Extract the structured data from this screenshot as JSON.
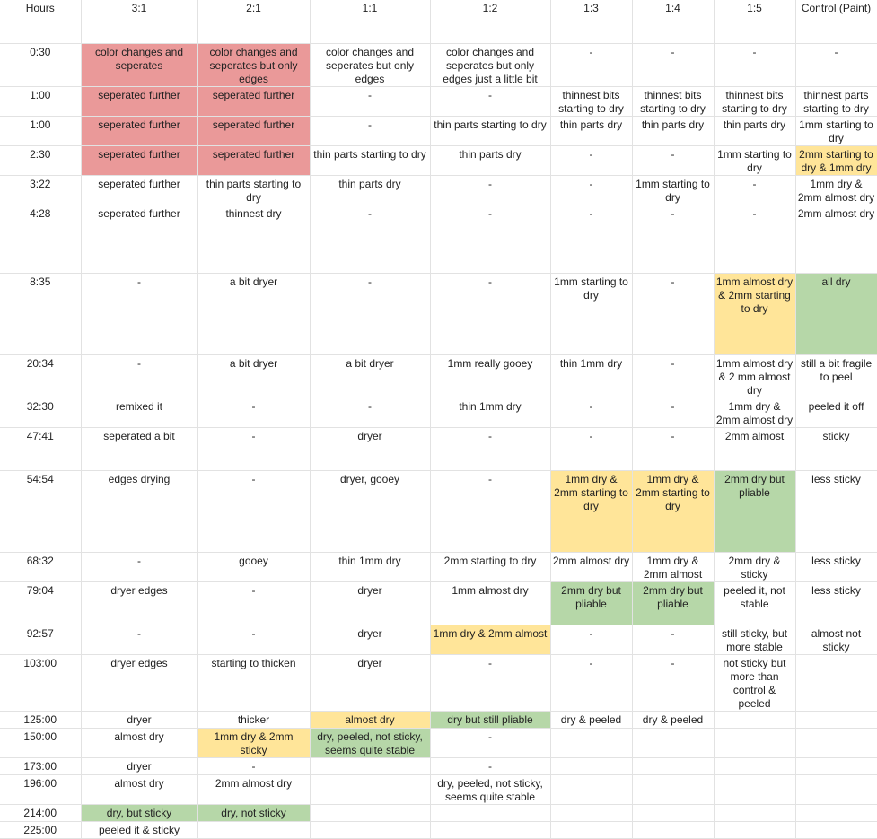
{
  "colors": {
    "red": "#ea9999",
    "yellow": "#ffe599",
    "green": "#b6d7a8"
  },
  "header": [
    "Hours",
    "3:1",
    "2:1",
    "1:1",
    "1:2",
    "1:3",
    "1:4",
    "1:5",
    "Control (Paint)"
  ],
  "rows": [
    {
      "hours": "0:30",
      "cells": [
        [
          "color changes and seperates",
          "red"
        ],
        [
          "color changes and seperates but only edges",
          "red"
        ],
        [
          "color changes and seperates but only edges",
          ""
        ],
        [
          "color changes and seperates but only edges just a little bit",
          ""
        ],
        [
          "-",
          ""
        ],
        [
          "-",
          ""
        ],
        [
          "-",
          ""
        ],
        [
          "-",
          ""
        ]
      ]
    },
    {
      "hours": "1:00",
      "cells": [
        [
          "seperated further",
          "red"
        ],
        [
          "seperated further",
          "red"
        ],
        [
          "-",
          ""
        ],
        [
          "-",
          ""
        ],
        [
          "thinnest bits starting to dry",
          ""
        ],
        [
          "thinnest bits starting to dry",
          ""
        ],
        [
          "thinnest bits starting to dry",
          ""
        ],
        [
          "thinnest parts starting to dry",
          ""
        ]
      ]
    },
    {
      "hours": "1:00",
      "cells": [
        [
          "seperated further",
          "red"
        ],
        [
          "seperated further",
          "red"
        ],
        [
          "-",
          ""
        ],
        [
          "thin parts starting to dry",
          ""
        ],
        [
          "thin parts dry",
          ""
        ],
        [
          "thin parts dry",
          ""
        ],
        [
          "thin parts dry",
          ""
        ],
        [
          "1mm starting to dry",
          ""
        ]
      ]
    },
    {
      "hours": "2:30",
      "cells": [
        [
          "seperated further",
          "red"
        ],
        [
          "seperated further",
          "red"
        ],
        [
          "thin parts starting to dry",
          ""
        ],
        [
          "thin parts dry",
          ""
        ],
        [
          "-",
          ""
        ],
        [
          "-",
          ""
        ],
        [
          "1mm starting to dry",
          ""
        ],
        [
          "2mm starting to dry & 1mm dry",
          "yellow"
        ]
      ]
    },
    {
      "hours": "3:22",
      "cells": [
        [
          "seperated further",
          ""
        ],
        [
          "thin parts starting to dry",
          ""
        ],
        [
          "thin parts dry",
          ""
        ],
        [
          "-",
          ""
        ],
        [
          "-",
          ""
        ],
        [
          "1mm starting to dry",
          ""
        ],
        [
          "-",
          ""
        ],
        [
          "1mm dry & 2mm almost dry",
          ""
        ]
      ]
    },
    {
      "hours": "4:28",
      "cells": [
        [
          "seperated further",
          ""
        ],
        [
          "thinnest dry",
          ""
        ],
        [
          "-",
          ""
        ],
        [
          "-",
          ""
        ],
        [
          "-",
          ""
        ],
        [
          "-",
          ""
        ],
        [
          "-",
          ""
        ],
        [
          "2mm almost dry",
          ""
        ]
      ]
    },
    {
      "hours": "8:35",
      "cells": [
        [
          "-",
          ""
        ],
        [
          "a bit dryer",
          ""
        ],
        [
          "-",
          ""
        ],
        [
          "-",
          ""
        ],
        [
          "1mm starting to dry",
          ""
        ],
        [
          "-",
          ""
        ],
        [
          "1mm almost dry & 2mm starting to dry",
          "yellow"
        ],
        [
          "all dry",
          "green"
        ]
      ]
    },
    {
      "hours": "20:34",
      "cells": [
        [
          "-",
          ""
        ],
        [
          "a bit dryer",
          ""
        ],
        [
          "a bit dryer",
          ""
        ],
        [
          "1mm really gooey",
          ""
        ],
        [
          "thin 1mm dry",
          ""
        ],
        [
          "-",
          ""
        ],
        [
          "1mm almost dry & 2 mm almost dry",
          ""
        ],
        [
          "still a bit fragile to peel",
          ""
        ]
      ]
    },
    {
      "hours": "32:30",
      "cells": [
        [
          "remixed it",
          ""
        ],
        [
          "-",
          ""
        ],
        [
          "-",
          ""
        ],
        [
          "thin 1mm dry",
          ""
        ],
        [
          "-",
          ""
        ],
        [
          "-",
          ""
        ],
        [
          "1mm dry & 2mm almost dry",
          ""
        ],
        [
          "peeled it off",
          ""
        ]
      ]
    },
    {
      "hours": "47:41",
      "cells": [
        [
          "seperated a bit",
          ""
        ],
        [
          "-",
          ""
        ],
        [
          "dryer",
          ""
        ],
        [
          "-",
          ""
        ],
        [
          "-",
          ""
        ],
        [
          "-",
          ""
        ],
        [
          "2mm almost",
          ""
        ],
        [
          "sticky",
          ""
        ]
      ]
    },
    {
      "hours": "54:54",
      "cells": [
        [
          "edges drying",
          ""
        ],
        [
          "-",
          ""
        ],
        [
          "dryer, gooey",
          ""
        ],
        [
          "-",
          ""
        ],
        [
          "1mm dry & 2mm starting to dry",
          "yellow"
        ],
        [
          "1mm dry & 2mm starting to dry",
          "yellow"
        ],
        [
          "2mm dry but pliable",
          "green"
        ],
        [
          "less sticky",
          ""
        ]
      ]
    },
    {
      "hours": "68:32",
      "cells": [
        [
          "-",
          ""
        ],
        [
          "gooey",
          ""
        ],
        [
          "thin 1mm dry",
          ""
        ],
        [
          "2mm starting to dry",
          ""
        ],
        [
          "2mm almost dry",
          ""
        ],
        [
          "1mm dry & 2mm almost",
          ""
        ],
        [
          "2mm dry & sticky",
          ""
        ],
        [
          "less sticky",
          ""
        ]
      ]
    },
    {
      "hours": "79:04",
      "cells": [
        [
          "dryer edges",
          ""
        ],
        [
          "-",
          ""
        ],
        [
          "dryer",
          ""
        ],
        [
          "1mm almost dry",
          ""
        ],
        [
          "2mm dry but pliable",
          "green"
        ],
        [
          "2mm dry but pliable",
          "green"
        ],
        [
          "peeled it, not stable",
          ""
        ],
        [
          "less sticky",
          ""
        ]
      ]
    },
    {
      "hours": "92:57",
      "cells": [
        [
          "-",
          ""
        ],
        [
          "-",
          ""
        ],
        [
          "dryer",
          ""
        ],
        [
          "1mm dry & 2mm almost",
          "yellow"
        ],
        [
          "-",
          ""
        ],
        [
          "-",
          ""
        ],
        [
          "still sticky, but more stable",
          ""
        ],
        [
          "almost not sticky",
          ""
        ]
      ]
    },
    {
      "hours": "103:00",
      "cells": [
        [
          "dryer edges",
          ""
        ],
        [
          "starting to thicken",
          ""
        ],
        [
          "dryer",
          ""
        ],
        [
          "-",
          ""
        ],
        [
          "-",
          ""
        ],
        [
          "-",
          ""
        ],
        [
          "not sticky but more than control & peeled",
          ""
        ],
        [
          "",
          ""
        ]
      ]
    },
    {
      "hours": "125:00",
      "cells": [
        [
          "dryer",
          ""
        ],
        [
          "thicker",
          ""
        ],
        [
          "almost dry",
          "yellow"
        ],
        [
          "dry but still pliable",
          "green"
        ],
        [
          "dry & peeled",
          ""
        ],
        [
          "dry & peeled",
          ""
        ],
        [
          "",
          ""
        ],
        [
          "",
          ""
        ]
      ]
    },
    {
      "hours": "150:00",
      "cells": [
        [
          "almost dry",
          ""
        ],
        [
          "1mm dry & 2mm sticky",
          "yellow"
        ],
        [
          "dry, peeled, not sticky, seems quite stable",
          "green"
        ],
        [
          "-",
          ""
        ],
        [
          "",
          ""
        ],
        [
          "",
          ""
        ],
        [
          "",
          ""
        ],
        [
          "",
          ""
        ]
      ]
    },
    {
      "hours": "173:00",
      "cells": [
        [
          "dryer",
          ""
        ],
        [
          "-",
          ""
        ],
        [
          "",
          ""
        ],
        [
          "-",
          ""
        ],
        [
          "",
          ""
        ],
        [
          "",
          ""
        ],
        [
          "",
          ""
        ],
        [
          "",
          ""
        ]
      ]
    },
    {
      "hours": "196:00",
      "cells": [
        [
          "almost dry",
          ""
        ],
        [
          "2mm almost dry",
          ""
        ],
        [
          "",
          ""
        ],
        [
          "dry, peeled, not sticky, seems quite stable",
          ""
        ],
        [
          "",
          ""
        ],
        [
          "",
          ""
        ],
        [
          "",
          ""
        ],
        [
          "",
          ""
        ]
      ]
    },
    {
      "hours": "214:00",
      "cells": [
        [
          "dry, but sticky",
          "green"
        ],
        [
          "dry, not sticky",
          "green"
        ],
        [
          "",
          ""
        ],
        [
          "",
          ""
        ],
        [
          "",
          ""
        ],
        [
          "",
          ""
        ],
        [
          "",
          ""
        ],
        [
          "",
          ""
        ]
      ]
    },
    {
      "hours": "225:00",
      "cells": [
        [
          "peeled it & sticky",
          ""
        ],
        [
          "",
          ""
        ],
        [
          "",
          ""
        ],
        [
          "",
          ""
        ],
        [
          "",
          ""
        ],
        [
          "",
          ""
        ],
        [
          "",
          ""
        ],
        [
          "",
          ""
        ]
      ]
    }
  ]
}
